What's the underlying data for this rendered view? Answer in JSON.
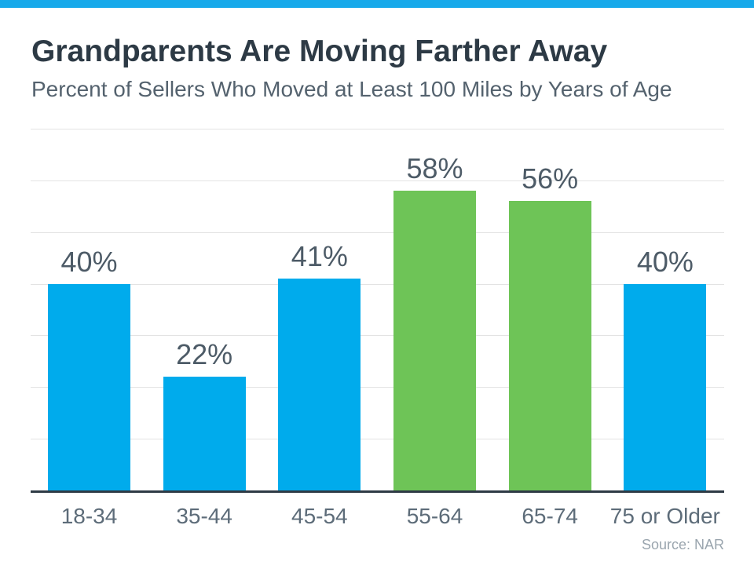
{
  "page": {
    "title": "Grandparents Are Moving Farther Away",
    "subtitle": "Percent of Sellers Who Moved at Least 100 Miles by Years of Age",
    "source": "Source: NAR"
  },
  "colors": {
    "accent_strip": "#17a9ea",
    "bar_blue": "#00abec",
    "bar_green": "#6ec457",
    "title_text": "#2d3a45",
    "subtitle_text": "#54626e",
    "value_label_text": "#4d5b67",
    "axis_label_text": "#5d6c79",
    "source_text": "#9aa5ae",
    "gridline": "#e3e3e3",
    "axis_line": "#2e3a45"
  },
  "chart_data": {
    "type": "bar",
    "title": "Grandparents Are Moving Farther Away",
    "subtitle": "Percent of Sellers Who Moved at Least 100 Miles by Years of Age",
    "categories": [
      "18-34",
      "35-44",
      "45-54",
      "55-64",
      "65-74",
      "75 or Older"
    ],
    "values": [
      40,
      22,
      41,
      58,
      56,
      40
    ],
    "value_labels": [
      "40%",
      "22%",
      "41%",
      "58%",
      "56%",
      "40%"
    ],
    "bar_colors": [
      "#00abec",
      "#00abec",
      "#00abec",
      "#6ec457",
      "#6ec457",
      "#00abec"
    ],
    "ylabel": "",
    "xlabel": "",
    "ylim": [
      0,
      70
    ],
    "gridline_step": 10,
    "grid": true,
    "legend_position": "none",
    "yaxis_tick_labels_shown": false,
    "source": "Source: NAR"
  }
}
